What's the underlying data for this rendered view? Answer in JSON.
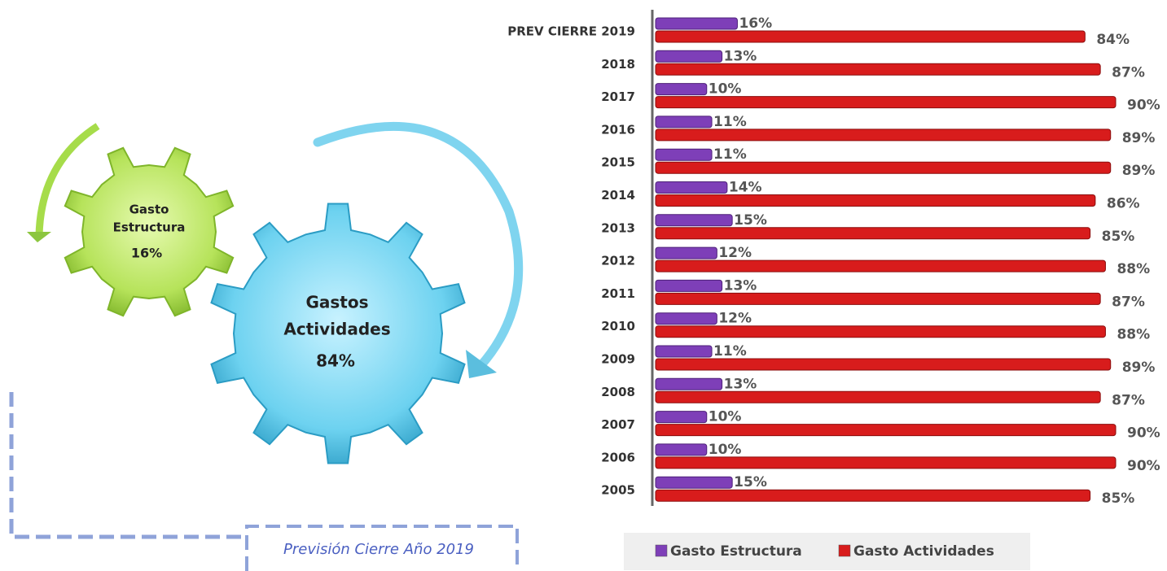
{
  "infographic": {
    "gears": [
      {
        "label": [
          "Gasto",
          "Estructura"
        ],
        "value_label": "16%"
      },
      {
        "label": [
          "Gastos",
          "Actividades"
        ],
        "value_label": "84%"
      }
    ],
    "caption": "Previsión Cierre Año 2019"
  },
  "chart_data": {
    "type": "bar",
    "orientation": "horizontal",
    "categories": [
      "PREV CIERRE 2019",
      "2018",
      "2017",
      "2016",
      "2015",
      "2014",
      "2013",
      "2012",
      "2011",
      "2010",
      "2009",
      "2008",
      "2007",
      "2006",
      "2005"
    ],
    "series": [
      {
        "name": "Gasto Estructura",
        "color": "#7e3fb8",
        "values": [
          16,
          13,
          10,
          11,
          11,
          14,
          15,
          12,
          13,
          12,
          11,
          13,
          10,
          10,
          15
        ],
        "value_labels": [
          "16%",
          "13%",
          "10%",
          "11%",
          "11%",
          "14%",
          "15%",
          "12%",
          "13%",
          "12%",
          "11%",
          "13%",
          "10%",
          "10%",
          "15%"
        ]
      },
      {
        "name": "Gasto Actividades",
        "color": "#d81c1c",
        "values": [
          84,
          87,
          90,
          89,
          89,
          86,
          85,
          88,
          87,
          88,
          89,
          87,
          90,
          90,
          85
        ],
        "value_labels": [
          "84%",
          "87%",
          "90%",
          "89%",
          "89%",
          "86%",
          "85%",
          "88%",
          "87%",
          "88%",
          "89%",
          "87%",
          "90%",
          "90%",
          "85%"
        ]
      }
    ],
    "legend": "bottom"
  }
}
